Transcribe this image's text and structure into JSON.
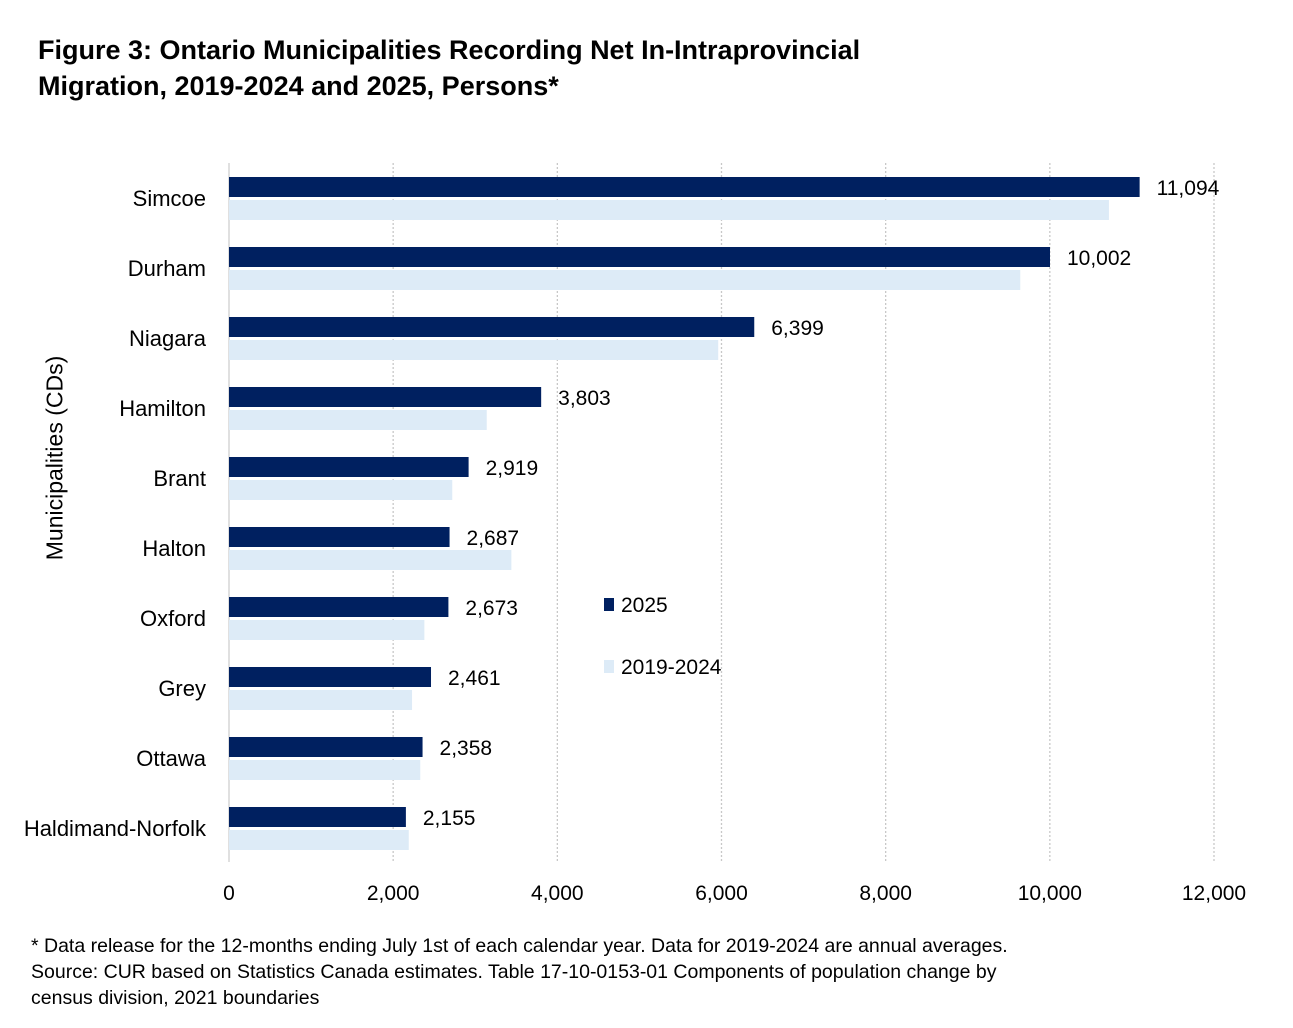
{
  "chart_data": {
    "type": "bar",
    "orientation": "horizontal",
    "title": "Figure 3: Ontario Municipalities Recording Net In-Intraprovincial Migration, 2019-2024 and 2025, Persons*",
    "title_lines": [
      "Figure 3: Ontario Municipalities Recording Net In-Intraprovincial",
      "Migration, 2019-2024 and 2025, Persons*"
    ],
    "xlabel": "",
    "ylabel": "Municipalities (CDs)",
    "xlim": [
      0,
      12000
    ],
    "xticks": [
      0,
      2000,
      4000,
      6000,
      8000,
      10000,
      12000
    ],
    "xtick_labels": [
      "0",
      "2,000",
      "4,000",
      "6,000",
      "8,000",
      "10,000",
      "12,000"
    ],
    "grid": "vertical dotted",
    "legend_position": "center-right",
    "categories": [
      "Simcoe",
      "Durham",
      "Niagara",
      "Hamilton",
      "Brant",
      "Halton",
      "Oxford",
      "Grey",
      "Ottawa",
      "Haldimand-Norfolk"
    ],
    "series": [
      {
        "name": "2025",
        "color": "#002060",
        "values": [
          11094,
          10002,
          6399,
          3803,
          2919,
          2687,
          2673,
          2461,
          2358,
          2155
        ],
        "data_labels": [
          "11,094",
          "10,002",
          "6,399",
          "3,803",
          "2,919",
          "2,687",
          "2,673",
          "2,461",
          "2,358",
          "2,155"
        ]
      },
      {
        "name": "2019-2024",
        "color": "#DDEBF7",
        "values": [
          10720,
          9640,
          5960,
          3140,
          2720,
          3440,
          2380,
          2230,
          2330,
          2190
        ]
      }
    ],
    "footnotes": [
      "* Data release for the 12-months ending July 1st of each calendar year. Data for 2019-2024 are annual averages.",
      "Source: CUR based on Statistics Canada estimates. Table 17-10-0153-01  Components of population change by",
      "census division, 2021 boundaries"
    ]
  }
}
